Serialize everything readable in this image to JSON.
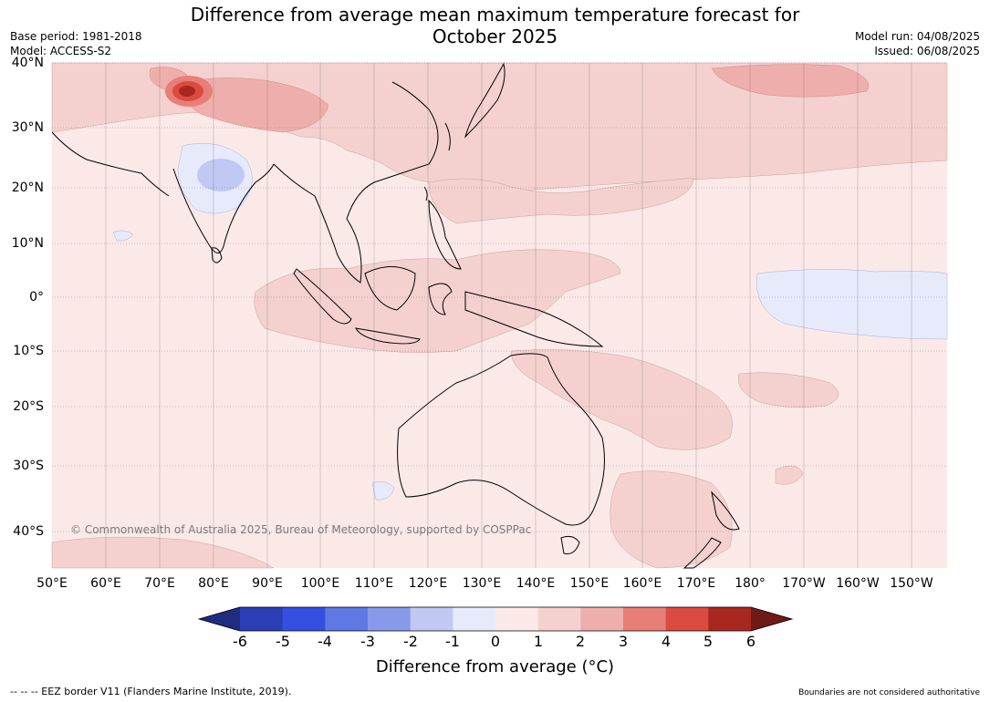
{
  "title_line1": "Difference from average mean maximum temperature forecast for",
  "title_line2": "October 2025",
  "meta_left": {
    "base_period": "Base period: 1981-2018",
    "model": "Model: ACCESS-S2"
  },
  "meta_right": {
    "model_run": "Model run: 04/08/2025",
    "issued": "Issued: 06/08/2025"
  },
  "lat_labels": [
    "40°N",
    "30°N",
    "20°N",
    "10°N",
    "0°",
    "10°S",
    "20°S",
    "30°S",
    "40°S"
  ],
  "lon_labels": [
    "50°E",
    "60°E",
    "70°E",
    "80°E",
    "90°E",
    "100°E",
    "110°E",
    "120°E",
    "130°E",
    "140°E",
    "150°E",
    "160°E",
    "170°E",
    "180°",
    "170°W",
    "160°W",
    "150°W"
  ],
  "copyright": "© Commonwealth of Australia 2025, Bureau of Meteorology, supported by COSPPac",
  "colorbar": {
    "ticks": [
      "-6",
      "-5",
      "-4",
      "-3",
      "-2",
      "-1",
      "0",
      "1",
      "2",
      "3",
      "4",
      "5",
      "6"
    ],
    "colors": [
      "#1f2c80",
      "#2a3fb5",
      "#3550e0",
      "#5f78e3",
      "#8899ea",
      "#c0c8f3",
      "#e6eafb",
      "#fbe9e8",
      "#f4d1cf",
      "#eeaeab",
      "#e87e78",
      "#db4b3f",
      "#a8281f",
      "#6e1a16"
    ],
    "title": "Difference from average (°C)"
  },
  "footer_left": "--  --  -- EEZ border V11 (Flanders Marine Institute, 2019).",
  "footer_right": "Boundaries are not considered authoritative"
}
